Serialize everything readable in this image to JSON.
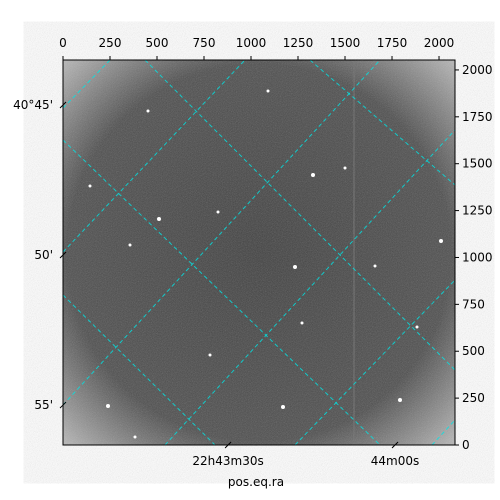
{
  "chart_data": {
    "type": "image",
    "x_label": "pos.eq.ra",
    "xlim": [
      0,
      2085
    ],
    "ylim": [
      0,
      2053
    ],
    "xticks": [
      0,
      250,
      500,
      750,
      1000,
      1250,
      1500,
      1750,
      2000
    ],
    "yticks": [
      0,
      250,
      500,
      750,
      1000,
      1250,
      1500,
      1750,
      2000
    ],
    "world_yticks": [
      {
        "value": 1813,
        "label": "40°45'"
      },
      {
        "value": 1013,
        "label": "50'"
      },
      {
        "value": 213,
        "label": "55'"
      }
    ],
    "world_xticks": [
      {
        "value": 878,
        "label": "22h43m30s"
      },
      {
        "value": 1766,
        "label": "44m00s"
      }
    ]
  }
}
